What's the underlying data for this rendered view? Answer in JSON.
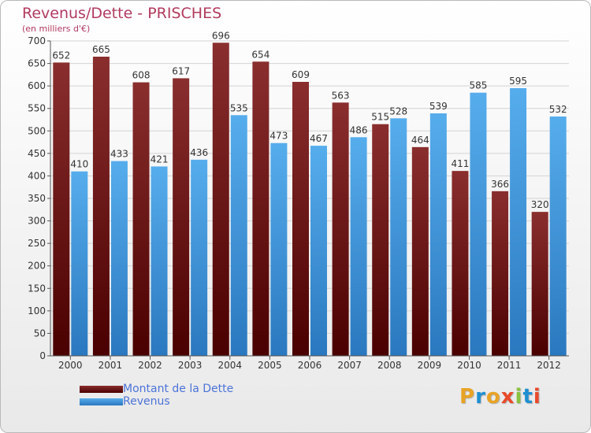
{
  "title": "Revenus/Dette - PRISCHES",
  "subtitle": "(en milliers d'€)",
  "logo_text": "Proxiti",
  "logo_colors": [
    "#e8a325",
    "#1f8fd0",
    "#e8a325",
    "#e84a2a",
    "#8bc13f",
    "#1f8fd0",
    "#e84a2a"
  ],
  "legend": [
    {
      "label": "Montant de la Dette",
      "color": "#6b0f0f"
    },
    {
      "label": "Revenus",
      "color": "#3c95dd"
    }
  ],
  "chart_data": {
    "type": "bar",
    "title": "Revenus/Dette - PRISCHES",
    "subtitle": "(en milliers d'€)",
    "xlabel": "",
    "ylabel": "",
    "ylim": [
      0,
      700
    ],
    "yticks": [
      0,
      50,
      100,
      150,
      200,
      250,
      300,
      350,
      400,
      450,
      500,
      550,
      600,
      650,
      700
    ],
    "grid": true,
    "legend_position": "bottom-left",
    "categories": [
      "2000",
      "2001",
      "2002",
      "2003",
      "2004",
      "2005",
      "2006",
      "2007",
      "2008",
      "2009",
      "2010",
      "2011",
      "2012"
    ],
    "series": [
      {
        "name": "Montant de la Dette",
        "color": "#7a1c1c",
        "values": [
          652,
          665,
          608,
          617,
          696,
          654,
          609,
          563,
          515,
          464,
          411,
          366,
          320
        ]
      },
      {
        "name": "Revenus",
        "color": "#3c95dd",
        "values": [
          410,
          433,
          421,
          436,
          535,
          473,
          467,
          486,
          528,
          539,
          585,
          595,
          532
        ]
      }
    ]
  }
}
